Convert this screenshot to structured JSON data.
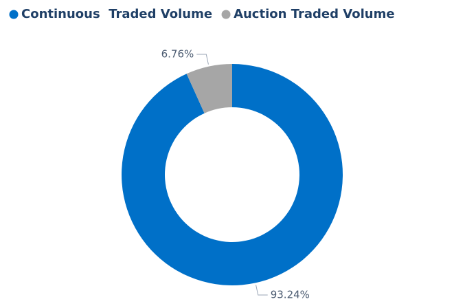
{
  "chart_data": {
    "type": "donut",
    "series": [
      {
        "name": "Continuous  Traded Volume",
        "color": "#0070c8",
        "values": [
          93.24
        ],
        "value_labels": [
          "93.24%"
        ]
      },
      {
        "name": "Auction Traded Volume",
        "color": "#a6a6a6",
        "values": [
          6.76
        ],
        "value_labels": [
          "6.76%"
        ]
      }
    ]
  }
}
